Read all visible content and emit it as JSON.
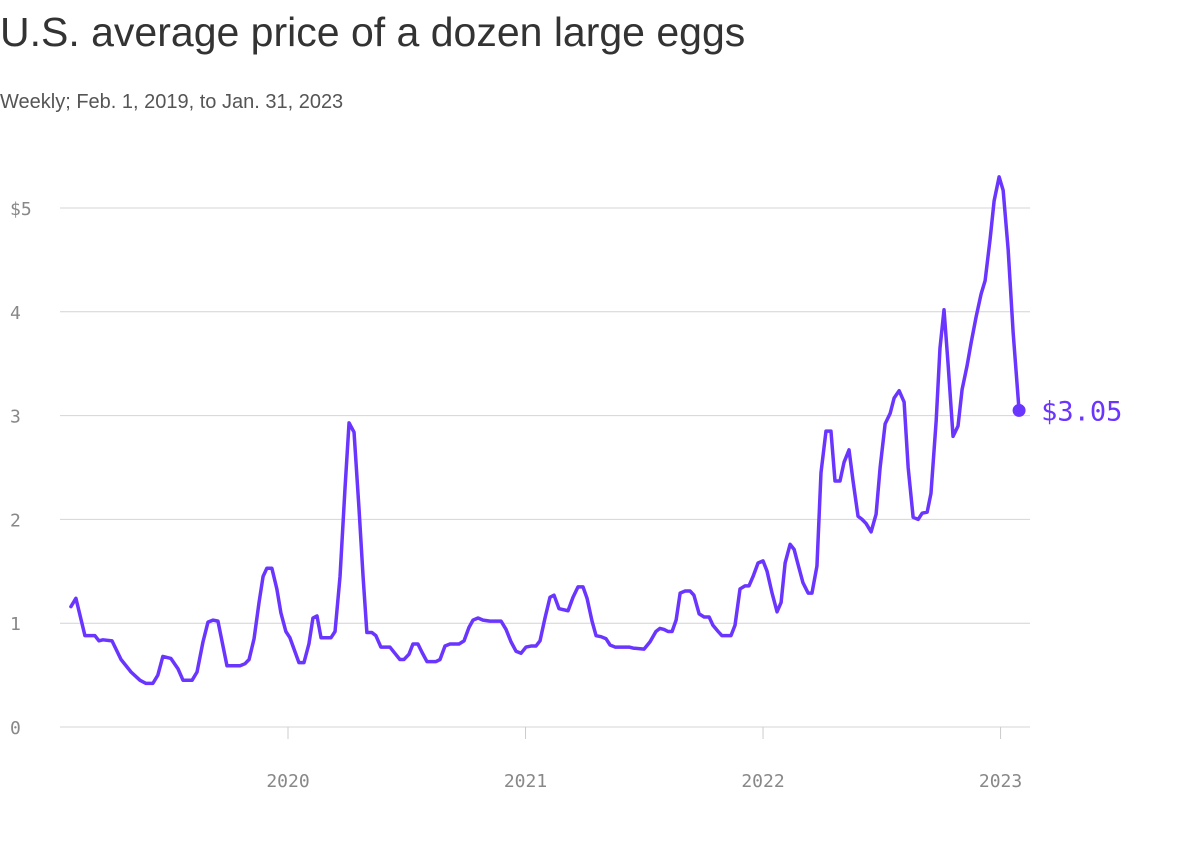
{
  "chart_data": {
    "type": "line",
    "title": "U.S. average price of a dozen large eggs",
    "subtitle": "Weekly; Feb. 1, 2019, to Jan. 31, 2023",
    "color": "#6a35ff",
    "grid": true,
    "xlim": [
      2019.04,
      2023.124
    ],
    "xticks": [
      2020,
      2021,
      2022,
      2023
    ],
    "ylim": [
      0,
      5.4
    ],
    "yticks": [
      0,
      1,
      2,
      3,
      4,
      {
        "value": 5,
        "label": "$5"
      }
    ],
    "last_value_label": "$3.05",
    "x": [
      2019.086,
      2019.107,
      2019.145,
      2019.187,
      2019.204,
      2019.221,
      2019.259,
      2019.297,
      2019.339,
      2019.377,
      2019.402,
      2019.431,
      2019.452,
      2019.473,
      2019.507,
      2019.537,
      2019.558,
      2019.596,
      2019.617,
      2019.642,
      2019.663,
      2019.684,
      2019.705,
      2019.743,
      2019.798,
      2019.819,
      2019.836,
      2019.857,
      2019.878,
      2019.895,
      2019.911,
      2019.932,
      2019.953,
      2019.97,
      2019.991,
      2020.008,
      2020.046,
      2020.067,
      2020.088,
      2020.105,
      2020.122,
      2020.139,
      2020.181,
      2020.198,
      2020.219,
      2020.24,
      2020.257,
      2020.278,
      2020.299,
      2020.316,
      2020.332,
      2020.353,
      2020.37,
      2020.391,
      2020.429,
      2020.45,
      2020.471,
      2020.488,
      2020.509,
      2020.526,
      2020.547,
      2020.564,
      2020.585,
      2020.623,
      2020.64,
      2020.661,
      2020.682,
      2020.72,
      2020.741,
      2020.762,
      2020.779,
      2020.8,
      2020.821,
      2020.85,
      2020.897,
      2020.918,
      2020.939,
      2020.96,
      2020.981,
      2021.002,
      2021.023,
      2021.044,
      2021.061,
      2021.082,
      2021.103,
      2021.12,
      2021.141,
      2021.179,
      2021.2,
      2021.221,
      2021.242,
      2021.259,
      2021.28,
      2021.297,
      2021.318,
      2021.339,
      2021.356,
      2021.377,
      2021.436,
      2021.453,
      2021.499,
      2021.524,
      2021.549,
      2021.566,
      2021.583,
      2021.6,
      2021.617,
      2021.634,
      2021.651,
      2021.672,
      2021.693,
      2021.709,
      2021.731,
      2021.752,
      2021.773,
      2021.789,
      2021.811,
      2021.827,
      2021.865,
      2021.882,
      2021.903,
      2021.924,
      2021.941,
      2021.958,
      2021.979,
      2022.0,
      2022.017,
      2022.038,
      2022.059,
      2022.076,
      2022.093,
      2022.114,
      2022.131,
      2022.147,
      2022.168,
      2022.19,
      2022.206,
      2022.227,
      2022.244,
      2022.265,
      2022.286,
      2022.303,
      2022.324,
      2022.341,
      2022.362,
      2022.379,
      2022.4,
      2022.417,
      2022.434,
      2022.455,
      2022.476,
      2022.493,
      2022.514,
      2022.535,
      2022.552,
      2022.573,
      2022.594,
      2022.611,
      2022.632,
      2022.653,
      2022.67,
      2022.691,
      2022.707,
      2022.729,
      2022.745,
      2022.762,
      2022.779,
      2022.8,
      2022.821,
      2022.838,
      2022.859,
      2022.876,
      2022.897,
      2022.918,
      2022.935,
      2022.956,
      2022.973,
      2022.994,
      2023.011,
      2023.032,
      2023.053,
      2023.078
    ],
    "values": [
      1.16,
      1.24,
      0.88,
      0.88,
      0.83,
      0.84,
      0.83,
      0.65,
      0.53,
      0.45,
      0.42,
      0.42,
      0.5,
      0.68,
      0.66,
      0.56,
      0.45,
      0.45,
      0.53,
      0.82,
      1.01,
      1.03,
      1.02,
      0.59,
      0.59,
      0.61,
      0.65,
      0.85,
      1.2,
      1.45,
      1.53,
      1.53,
      1.33,
      1.1,
      0.92,
      0.86,
      0.62,
      0.62,
      0.8,
      1.05,
      1.07,
      0.86,
      0.86,
      0.92,
      1.45,
      2.3,
      2.93,
      2.84,
      2.1,
      1.45,
      0.91,
      0.91,
      0.88,
      0.77,
      0.77,
      0.71,
      0.65,
      0.65,
      0.7,
      0.8,
      0.8,
      0.72,
      0.63,
      0.63,
      0.65,
      0.78,
      0.8,
      0.8,
      0.83,
      0.96,
      1.03,
      1.05,
      1.03,
      1.02,
      1.02,
      0.94,
      0.82,
      0.73,
      0.71,
      0.77,
      0.78,
      0.78,
      0.83,
      1.05,
      1.25,
      1.27,
      1.14,
      1.12,
      1.25,
      1.35,
      1.35,
      1.24,
      1.02,
      0.88,
      0.87,
      0.85,
      0.79,
      0.77,
      0.77,
      0.76,
      0.75,
      0.82,
      0.92,
      0.95,
      0.94,
      0.92,
      0.92,
      1.03,
      1.29,
      1.31,
      1.31,
      1.27,
      1.09,
      1.06,
      1.06,
      0.98,
      0.92,
      0.88,
      0.88,
      0.98,
      1.33,
      1.36,
      1.36,
      1.45,
      1.58,
      1.6,
      1.5,
      1.29,
      1.11,
      1.2,
      1.58,
      1.76,
      1.71,
      1.57,
      1.39,
      1.29,
      1.29,
      1.55,
      2.45,
      2.85,
      2.85,
      2.37,
      2.37,
      2.55,
      2.67,
      2.37,
      2.03,
      2.0,
      1.96,
      1.88,
      2.05,
      2.5,
      2.92,
      3.02,
      3.17,
      3.24,
      3.13,
      2.5,
      2.02,
      2.0,
      2.06,
      2.07,
      2.25,
      2.95,
      3.65,
      4.02,
      3.5,
      2.8,
      2.9,
      3.25,
      3.48,
      3.7,
      3.95,
      4.17,
      4.3,
      4.7,
      5.07,
      5.3,
      5.17,
      4.6,
      3.8,
      3.05
    ]
  }
}
